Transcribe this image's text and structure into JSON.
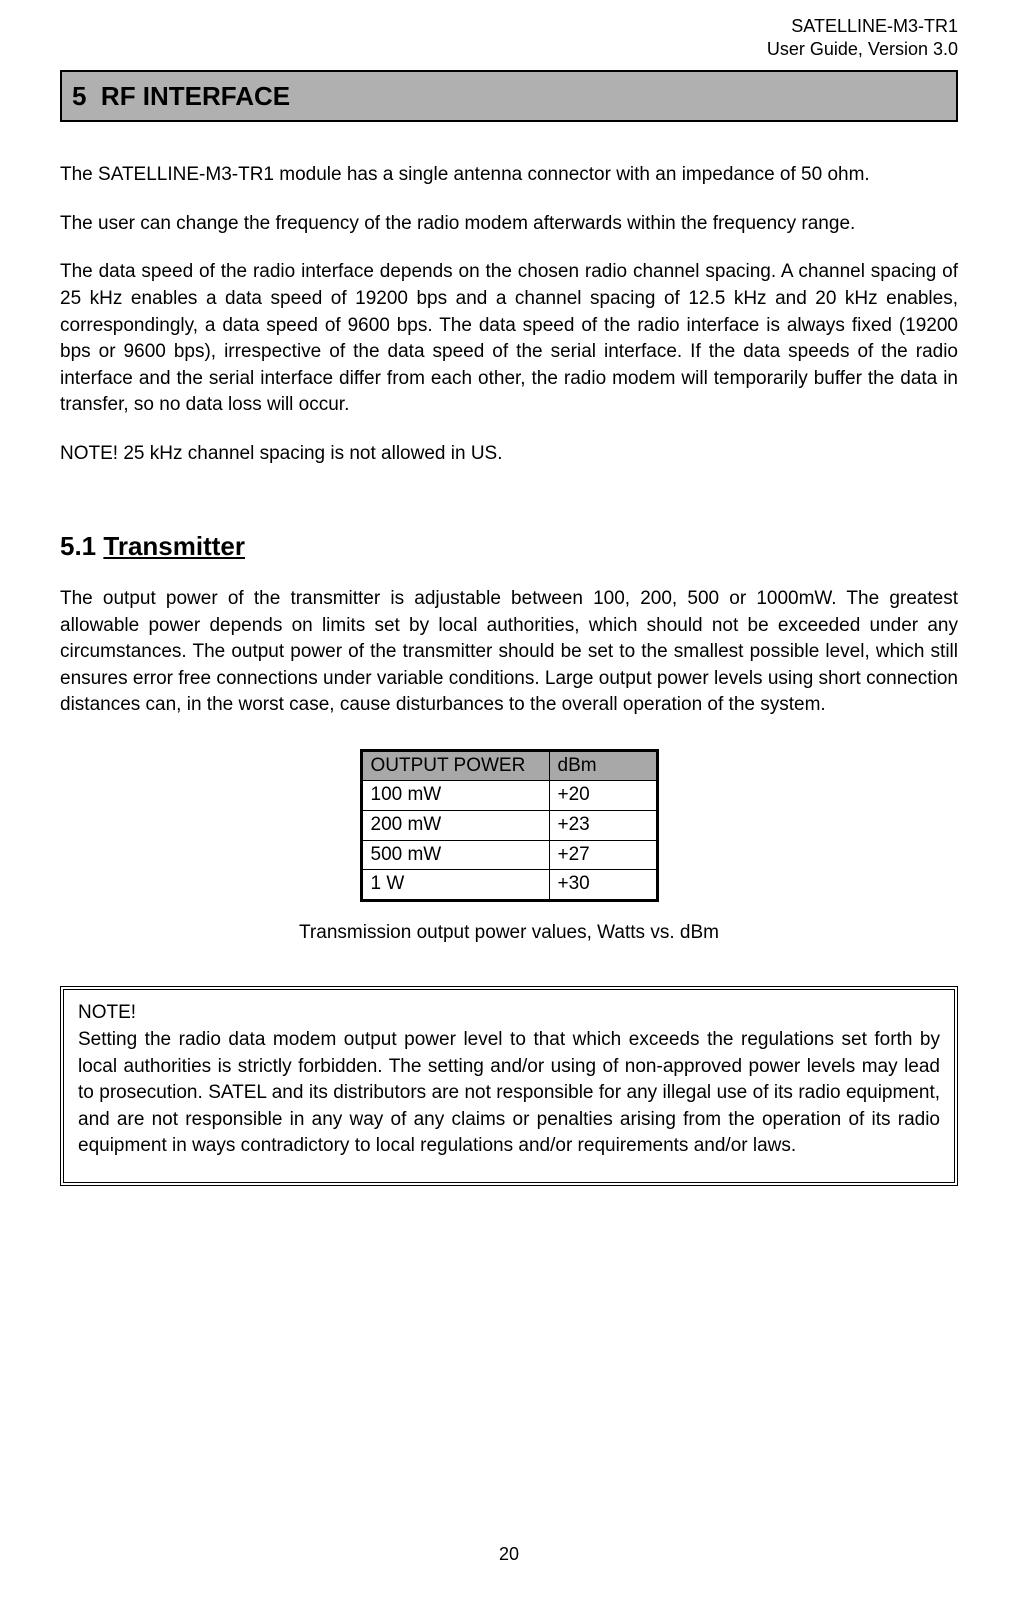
{
  "header": {
    "line1": "SATELLINE-M3-TR1",
    "line2": "User Guide, Version 3.0"
  },
  "section": {
    "number": "5",
    "title": "RF INTERFACE",
    "bar_bg": "#b0b0b0"
  },
  "paragraphs": {
    "p1": "The SATELLINE-M3-TR1 module has a single antenna connector with an impedance of 50 ohm.",
    "p2": "The user can change the frequency of the radio modem afterwards within the frequency range.",
    "p3": "The data speed of the radio interface depends on the chosen radio channel spacing. A channel spacing of 25 kHz enables a data speed of 19200 bps and a channel spacing of 12.5 kHz and 20 kHz enables, correspondingly, a data speed of 9600 bps. The data speed of the radio interface is always fixed (19200 bps or 9600 bps), irrespective of the data speed of the serial interface. If the data speeds of the radio interface and the serial interface differ from each other, the radio modem will temporarily buffer the data in transfer, so no data loss will occur.",
    "p4": "NOTE! 25 kHz channel spacing is not allowed in US."
  },
  "subsection": {
    "number": "5.1",
    "title": "Transmitter",
    "body": "The output power of the transmitter is adjustable between 100, 200, 500 or 1000mW. The greatest allowable power depends on limits set by local authorities, which should not be exceeded under any circumstances. The output power of the transmitter should be set to the smallest possible level, which still ensures error free connections under variable conditions. Large output power levels using short connection distances can, in the worst case, cause disturbances to the overall operation of the system."
  },
  "power_table": {
    "type": "table",
    "header_bg": "#a8a8a8",
    "columns": [
      "OUTPUT POWER",
      "dBm"
    ],
    "rows": [
      [
        "100 mW",
        "+20"
      ],
      [
        "200 mW",
        "+23"
      ],
      [
        "500 mW",
        "+27"
      ],
      [
        "1 W",
        "+30"
      ]
    ],
    "caption": "Transmission output power values, Watts vs. dBm"
  },
  "note_box": {
    "title": "NOTE!",
    "body": "Setting the radio data modem output power level to that which exceeds the regulations set forth by local authorities is strictly forbidden. The setting and/or using of non-approved power levels may lead to prosecution. SATEL and its distributors are not responsible for any illegal use of its radio equipment, and are not responsible in any way of any claims or penalties arising from the operation of its radio equipment in ways contradictory to local regulations and/or requirements and/or laws."
  },
  "page_number": "20"
}
